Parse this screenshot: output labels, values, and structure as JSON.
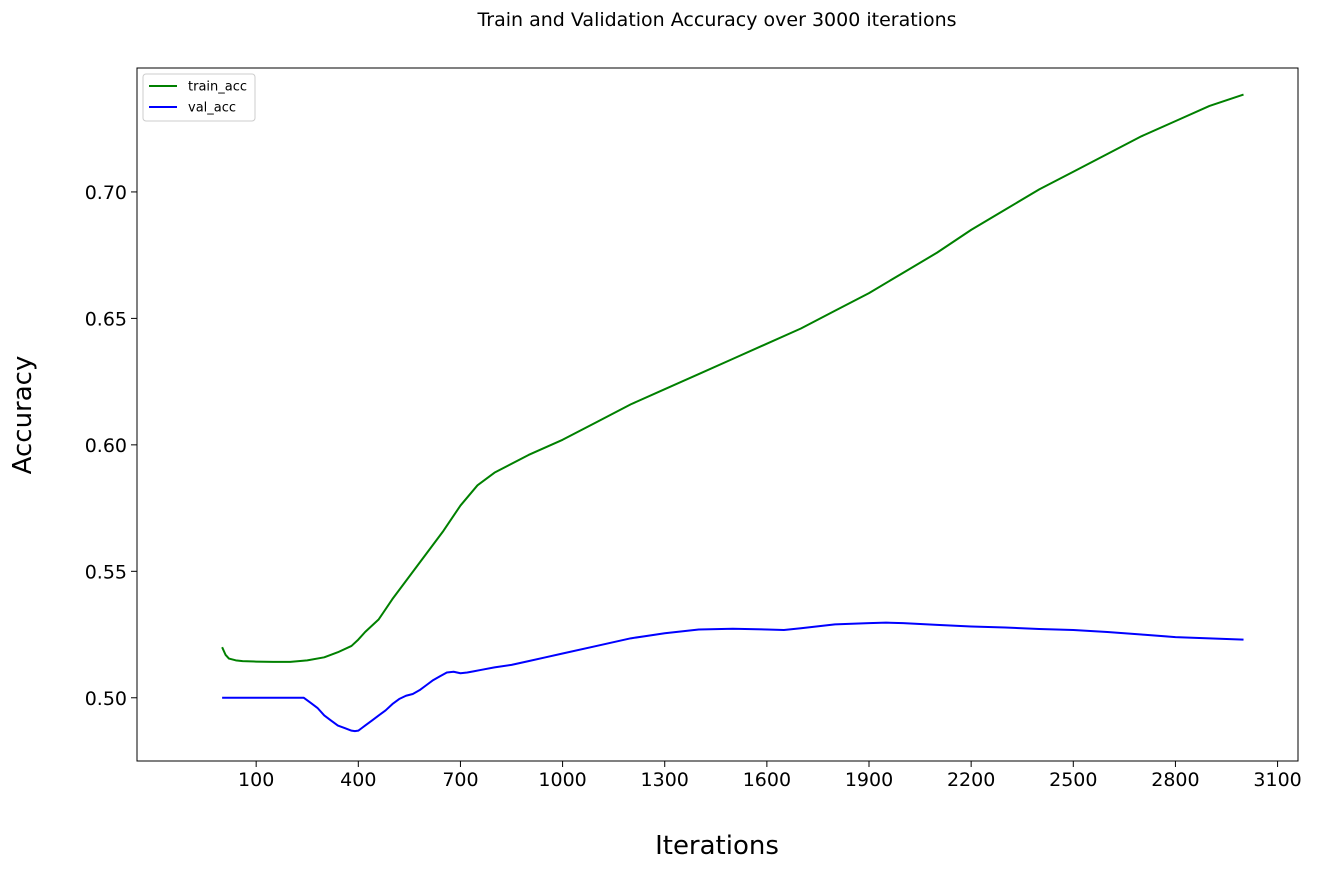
{
  "chart_data": {
    "type": "line",
    "title": "Train and Validation Accuracy over 3000 iterations",
    "xlabel": "Iterations",
    "ylabel": "Accuracy",
    "xlim": [
      -250,
      3160
    ],
    "ylim": [
      0.475,
      0.749
    ],
    "xticks": [
      100,
      400,
      700,
      1000,
      1300,
      1600,
      1900,
      2200,
      2500,
      2800,
      3100
    ],
    "yticks": [
      0.5,
      0.55,
      0.6,
      0.65,
      0.7
    ],
    "ytick_labels": [
      "0.50",
      "0.55",
      "0.60",
      "0.65",
      "0.70"
    ],
    "grid": false,
    "legend_position": "top-left",
    "series": [
      {
        "name": "train_acc",
        "color": "#008000",
        "x": [
          0,
          10,
          20,
          40,
          60,
          100,
          150,
          200,
          250,
          300,
          340,
          380,
          400,
          420,
          460,
          500,
          550,
          600,
          650,
          700,
          750,
          800,
          900,
          1000,
          1100,
          1200,
          1300,
          1400,
          1500,
          1600,
          1700,
          1800,
          1900,
          2000,
          2100,
          2200,
          2300,
          2400,
          2500,
          2600,
          2700,
          2800,
          2900,
          3000
        ],
        "y": [
          0.52,
          0.517,
          0.5155,
          0.5148,
          0.5145,
          0.5143,
          0.5142,
          0.5142,
          0.5148,
          0.516,
          0.518,
          0.5205,
          0.523,
          0.526,
          0.531,
          0.539,
          0.548,
          0.557,
          0.566,
          0.576,
          0.584,
          0.589,
          0.596,
          0.602,
          0.609,
          0.616,
          0.622,
          0.628,
          0.634,
          0.64,
          0.646,
          0.653,
          0.66,
          0.668,
          0.676,
          0.685,
          0.693,
          0.701,
          0.708,
          0.715,
          0.722,
          0.728,
          0.734,
          0.7385
        ]
      },
      {
        "name": "val_acc",
        "color": "#0000ff",
        "x": [
          0,
          50,
          100,
          150,
          200,
          240,
          260,
          280,
          300,
          320,
          340,
          360,
          380,
          390,
          400,
          410,
          420,
          440,
          460,
          480,
          500,
          520,
          540,
          560,
          580,
          600,
          620,
          640,
          660,
          680,
          700,
          720,
          740,
          760,
          800,
          850,
          900,
          950,
          1000,
          1100,
          1200,
          1300,
          1400,
          1500,
          1600,
          1650,
          1700,
          1800,
          1900,
          1950,
          2000,
          2100,
          2200,
          2300,
          2400,
          2500,
          2600,
          2700,
          2800,
          2900,
          3000
        ],
        "y": [
          0.5,
          0.5,
          0.5,
          0.5,
          0.5,
          0.5,
          0.498,
          0.496,
          0.493,
          0.491,
          0.489,
          0.488,
          0.487,
          0.4868,
          0.487,
          0.488,
          0.489,
          0.491,
          0.493,
          0.495,
          0.4975,
          0.4995,
          0.5008,
          0.5015,
          0.503,
          0.505,
          0.507,
          0.5085,
          0.51,
          0.5103,
          0.5097,
          0.51,
          0.5105,
          0.511,
          0.512,
          0.513,
          0.5145,
          0.516,
          0.5175,
          0.5205,
          0.5235,
          0.5255,
          0.527,
          0.5273,
          0.527,
          0.5268,
          0.5275,
          0.529,
          0.5295,
          0.5297,
          0.5295,
          0.5288,
          0.5282,
          0.5278,
          0.5272,
          0.5268,
          0.526,
          0.525,
          0.524,
          0.5235,
          0.523
        ]
      }
    ]
  }
}
